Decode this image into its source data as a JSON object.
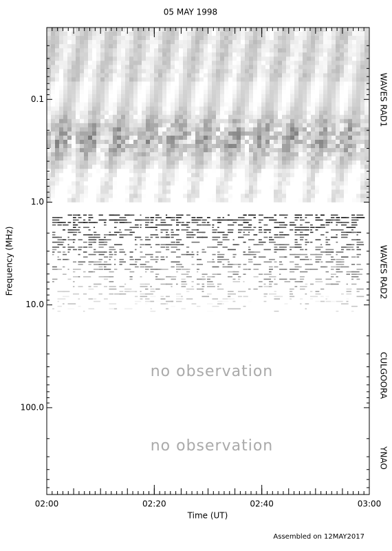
{
  "chart_data": {
    "type": "spectrogram",
    "title": "05 MAY 1998",
    "x_label": "Time (UT)",
    "y_label": "Frequency (MHz)",
    "xlim": [
      0,
      60
    ],
    "xticks": [
      {
        "value": 0,
        "label": "02:00"
      },
      {
        "value": 20,
        "label": "02:20"
      },
      {
        "value": 40,
        "label": "02:40"
      },
      {
        "value": 60,
        "label": "03:00"
      }
    ],
    "ylim": [
      0.02,
      700
    ],
    "y_log": true,
    "y_inverted": true,
    "yticks": [
      0.1,
      {
        "value": 1,
        "label": "1.0"
      },
      {
        "value": 10,
        "label": "10.0"
      },
      {
        "value": 100,
        "label": "100.0"
      }
    ],
    "bands": [
      "WAVES RAD1",
      "WAVES RAD2",
      "CULGOORA",
      "YNAO"
    ],
    "annotations": [
      "no observation",
      "no observation"
    ],
    "footer": "Assembled on 12MAY2017"
  }
}
